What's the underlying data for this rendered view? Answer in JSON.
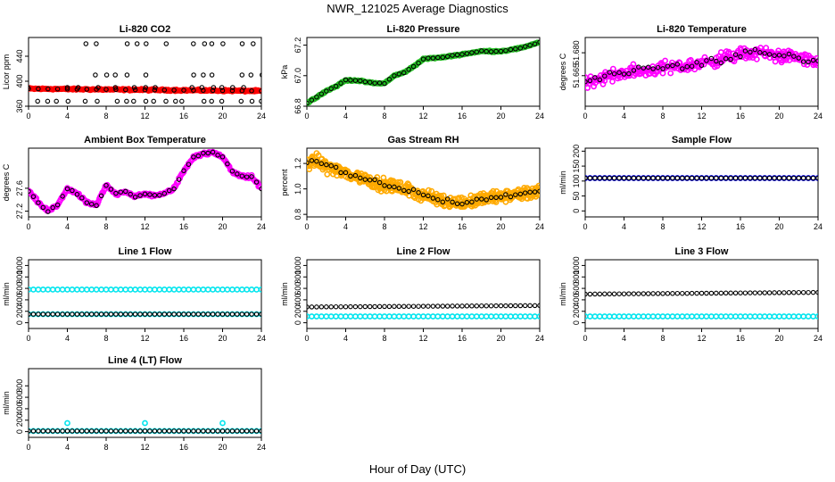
{
  "page": {
    "title": "NWR_121025  Average Diagnostics",
    "xlabel": "Hour of Day (UTC)"
  },
  "colors": {
    "red": "#ff0000",
    "green": "#22bb22",
    "magenta": "#ff00ff",
    "orange": "#ffaa00",
    "blue": "#0000ff",
    "cyan": "#00e5ee",
    "black": "#000000"
  },
  "chart_data": [
    {
      "type": "scatter",
      "title": "Li-820 CO2",
      "ylabel": "Licor ppm",
      "xlim": [
        0,
        24
      ],
      "ylim": [
        360,
        470
      ],
      "xticks": [
        "0",
        "4",
        "8",
        "12",
        "16",
        "20",
        "24"
      ],
      "yticks": [
        "360",
        "400",
        "440"
      ],
      "series": [
        {
          "name": "all",
          "color": "red",
          "gen": "co2_red"
        },
        {
          "name": "hourly",
          "color": "black",
          "gen": "co2_black"
        }
      ]
    },
    {
      "type": "scatter",
      "title": "Li-820 Pressure",
      "ylabel": "kPa",
      "xlim": [
        0,
        24
      ],
      "ylim": [
        66.8,
        67.25
      ],
      "xticks": [
        "0",
        "4",
        "8",
        "12",
        "16",
        "20",
        "24"
      ],
      "yticks": [
        "66.8",
        "67.0",
        "67.2"
      ],
      "series": [
        {
          "name": "all",
          "color": "green",
          "gen": "press_green"
        },
        {
          "name": "hourly",
          "color": "black",
          "gen": "press_black"
        }
      ]
    },
    {
      "type": "scatter",
      "title": "Li-820 Temperature",
      "ylabel": "degrees C",
      "xlim": [
        0,
        24
      ],
      "ylim": [
        51.645,
        51.69
      ],
      "xticks": [
        "0",
        "4",
        "8",
        "12",
        "16",
        "20",
        "24"
      ],
      "yticks": [
        "51.665",
        "51.680"
      ],
      "series": [
        {
          "name": "all",
          "color": "magenta",
          "gen": "temp_mag"
        },
        {
          "name": "hourly",
          "color": "black",
          "gen": "temp_black"
        }
      ]
    },
    {
      "type": "scatter",
      "title": "Ambient Box Temperature",
      "ylabel": "degrees C",
      "xlim": [
        0,
        24
      ],
      "ylim": [
        27.1,
        28.3
      ],
      "xticks": [
        "0",
        "4",
        "8",
        "12",
        "16",
        "20",
        "24"
      ],
      "yticks": [
        "27.2",
        "27.6"
      ],
      "series": [
        {
          "name": "all",
          "color": "magenta",
          "gen": "amb_mag"
        },
        {
          "name": "hourly",
          "color": "black",
          "gen": "amb_black"
        }
      ]
    },
    {
      "type": "scatter",
      "title": "Gas Stream RH",
      "ylabel": "percent",
      "xlim": [
        0,
        24
      ],
      "ylim": [
        0.78,
        1.32
      ],
      "xticks": [
        "0",
        "4",
        "8",
        "12",
        "16",
        "20",
        "24"
      ],
      "yticks": [
        "0.8",
        "1.0",
        "1.2"
      ],
      "series": [
        {
          "name": "all",
          "color": "orange",
          "gen": "rh_orange"
        },
        {
          "name": "hourly",
          "color": "black",
          "gen": "rh_black"
        }
      ]
    },
    {
      "type": "scatter",
      "title": "Sample Flow",
      "ylabel": "ml/min",
      "xlim": [
        0,
        24
      ],
      "ylim": [
        -20,
        210
      ],
      "xticks": [
        "0",
        "4",
        "8",
        "12",
        "16",
        "20",
        "24"
      ],
      "yticks": [
        "0",
        "50",
        "100",
        "150",
        "200"
      ],
      "series": [
        {
          "name": "all",
          "color": "blue",
          "gen": "const",
          "value": 110
        },
        {
          "name": "hourly",
          "color": "black",
          "gen": "const",
          "value": 110
        }
      ]
    },
    {
      "type": "scatter",
      "title": "Line 1 Flow",
      "ylabel": "ml/min",
      "xlim": [
        0,
        24
      ],
      "ylim": [
        -100,
        1100
      ],
      "xticks": [
        "0",
        "4",
        "8",
        "12",
        "16",
        "20",
        "24"
      ],
      "yticks": [
        "0",
        "200",
        "400",
        "600",
        "800",
        "1000"
      ],
      "series": [
        {
          "name": "high",
          "color": "cyan",
          "gen": "const",
          "value": 580
        },
        {
          "name": "low",
          "color": "cyan",
          "gen": "const",
          "value": 150
        },
        {
          "name": "hourly",
          "color": "black",
          "gen": "const",
          "value": 150
        }
      ]
    },
    {
      "type": "scatter",
      "title": "Line 2 Flow",
      "ylabel": "ml/min",
      "xlim": [
        0,
        24
      ],
      "ylim": [
        -100,
        1100
      ],
      "xticks": [
        "0",
        "4",
        "8",
        "12",
        "16",
        "20",
        "24"
      ],
      "yticks": [
        "0",
        "200",
        "400",
        "600",
        "800",
        "1000"
      ],
      "series": [
        {
          "name": "low",
          "color": "cyan",
          "gen": "const",
          "value": 110
        },
        {
          "name": "hourly",
          "color": "black",
          "gen": "ramp",
          "value": 275,
          "end": 300
        }
      ]
    },
    {
      "type": "scatter",
      "title": "Line 3 Flow",
      "ylabel": "ml/min",
      "xlim": [
        0,
        24
      ],
      "ylim": [
        -100,
        1100
      ],
      "xticks": [
        "0",
        "4",
        "8",
        "12",
        "16",
        "20",
        "24"
      ],
      "yticks": [
        "0",
        "200",
        "400",
        "600",
        "800",
        "1000"
      ],
      "series": [
        {
          "name": "low",
          "color": "cyan",
          "gen": "const",
          "value": 110
        },
        {
          "name": "hourly",
          "color": "black",
          "gen": "ramp",
          "value": 500,
          "end": 530
        }
      ]
    },
    {
      "type": "scatter",
      "title": "Line 4 (LT) Flow",
      "ylabel": "ml/min",
      "xlim": [
        0,
        24
      ],
      "ylim": [
        -100,
        1100
      ],
      "xticks": [
        "0",
        "4",
        "8",
        "12",
        "16",
        "20",
        "24"
      ],
      "yticks": [
        "0",
        "200",
        "400",
        "600",
        "800"
      ],
      "series": [
        {
          "name": "low",
          "color": "cyan",
          "gen": "const",
          "value": 10
        },
        {
          "name": "hourly",
          "color": "black",
          "gen": "const",
          "value": 10
        },
        {
          "name": "spikes",
          "color": "cyan",
          "gen": "points",
          "x": [
            4,
            12,
            20
          ],
          "y": [
            150,
            150,
            150
          ]
        }
      ]
    }
  ]
}
